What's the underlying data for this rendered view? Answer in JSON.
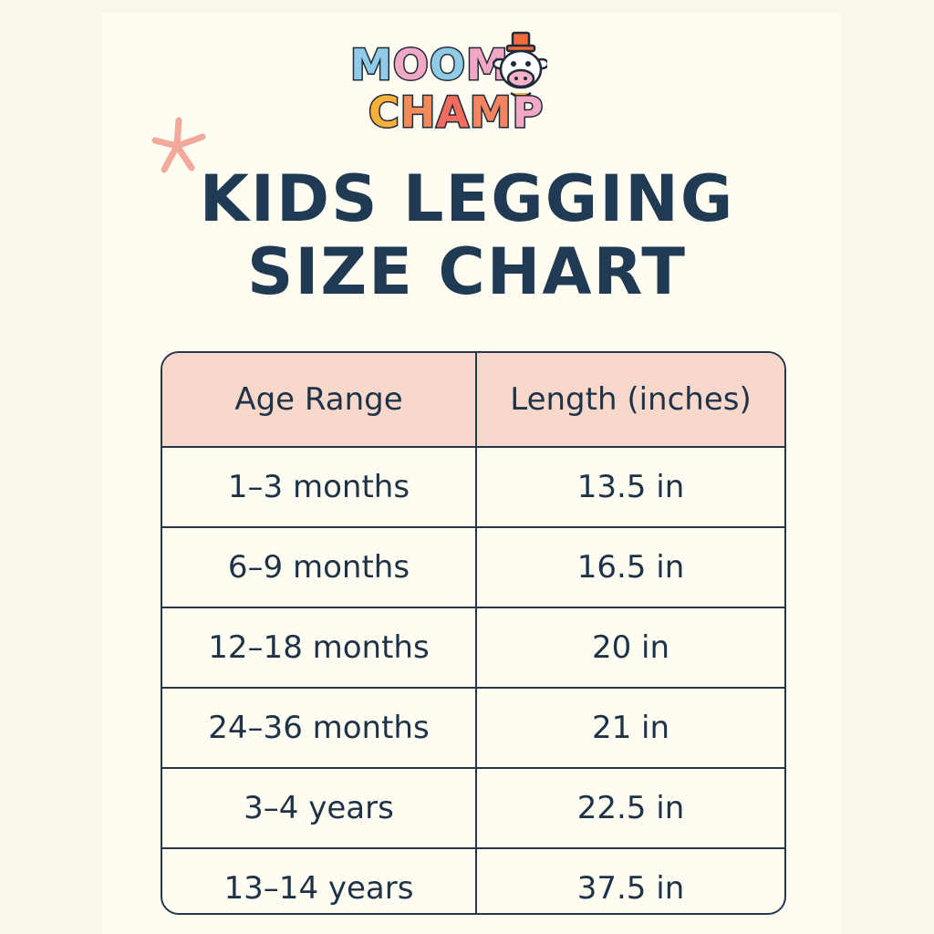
{
  "brand": {
    "line1": [
      "M",
      "O",
      "O",
      "M",
      "O"
    ],
    "line2": [
      "C",
      "H",
      "A",
      "M",
      "P"
    ],
    "line1_colors": [
      "#8fcbe6",
      "#f2a7c4",
      "#8fcbe6",
      "#f2a7c4",
      "#f7b13b"
    ],
    "line2_colors": [
      "#f7b13b",
      "#f28a5a",
      "#f26b5f",
      "#f4845f",
      "#f2a7c4"
    ],
    "mascot_icon": "cow-icon"
  },
  "decoration": {
    "icon": "asterisk-star-icon",
    "color": "#f2a89a"
  },
  "title": {
    "line1": "KIDS LEGGING",
    "line2": "SIZE CHART"
  },
  "table": {
    "headers": [
      "Age Range",
      "Length (inches)"
    ],
    "rows": [
      [
        "1–3 months",
        "13.5 in"
      ],
      [
        "6–9 months",
        "16.5 in"
      ],
      [
        "12–18 months",
        "20 in"
      ],
      [
        "24–36 months",
        "21 in"
      ],
      [
        "3–4 years",
        "22.5 in"
      ],
      [
        "13–14 years",
        "37.5 in"
      ]
    ]
  },
  "colors": {
    "header_bg": "#f9d8cc",
    "text": "#1f3a52",
    "background": "#fffcf1"
  }
}
